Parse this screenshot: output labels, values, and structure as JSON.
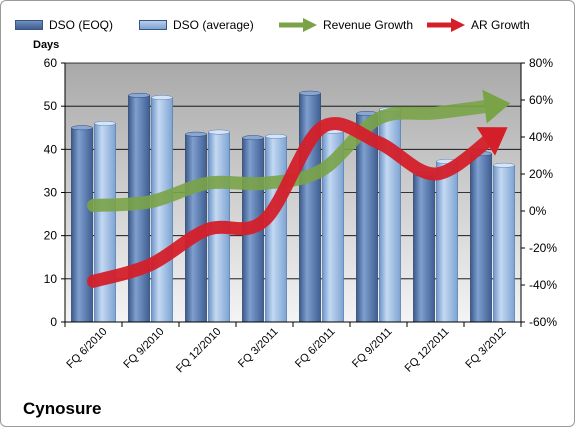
{
  "chart_data": {
    "type": "bar",
    "categories": [
      "FQ 6/2010",
      "FQ 9/2010",
      "FQ 12/2010",
      "FQ 3/2011",
      "FQ 6/2011",
      "FQ 9/2011",
      "FQ 12/2011",
      "FQ 3/2012"
    ],
    "series": [
      {
        "name": "DSO (EOQ)",
        "type": "bar",
        "axis": "left",
        "color": "#4f6fa3",
        "values": [
          45,
          52.5,
          43.5,
          42.7,
          53,
          48.3,
          34.3,
          39
        ]
      },
      {
        "name": "DSO (average)",
        "type": "bar",
        "axis": "left",
        "color": "#8fb2dd",
        "values": [
          46,
          52,
          44,
          43,
          44.2,
          49.2,
          37.2,
          36.3
        ]
      },
      {
        "name": "Revenue Growth",
        "type": "line",
        "axis": "right",
        "color": "#7aa348",
        "values": [
          3,
          5,
          15,
          15,
          22,
          50,
          53,
          57
        ]
      },
      {
        "name": "AR Growth",
        "type": "line",
        "axis": "right",
        "color": "#d41f2a",
        "values": [
          -38,
          -29,
          -10,
          -5,
          45,
          37,
          20,
          40
        ]
      }
    ],
    "ylabel": "Days",
    "ylim": [
      0,
      60
    ],
    "yticks": [
      "0",
      "10",
      "20",
      "30",
      "40",
      "50",
      "60"
    ],
    "y2lim": [
      -60,
      80
    ],
    "y2ticks": [
      "-60%",
      "-40%",
      "-20%",
      "0%",
      "20%",
      "40%",
      "60%",
      "80%"
    ],
    "grid": true,
    "legend": "top"
  },
  "brand": "Cynosure"
}
